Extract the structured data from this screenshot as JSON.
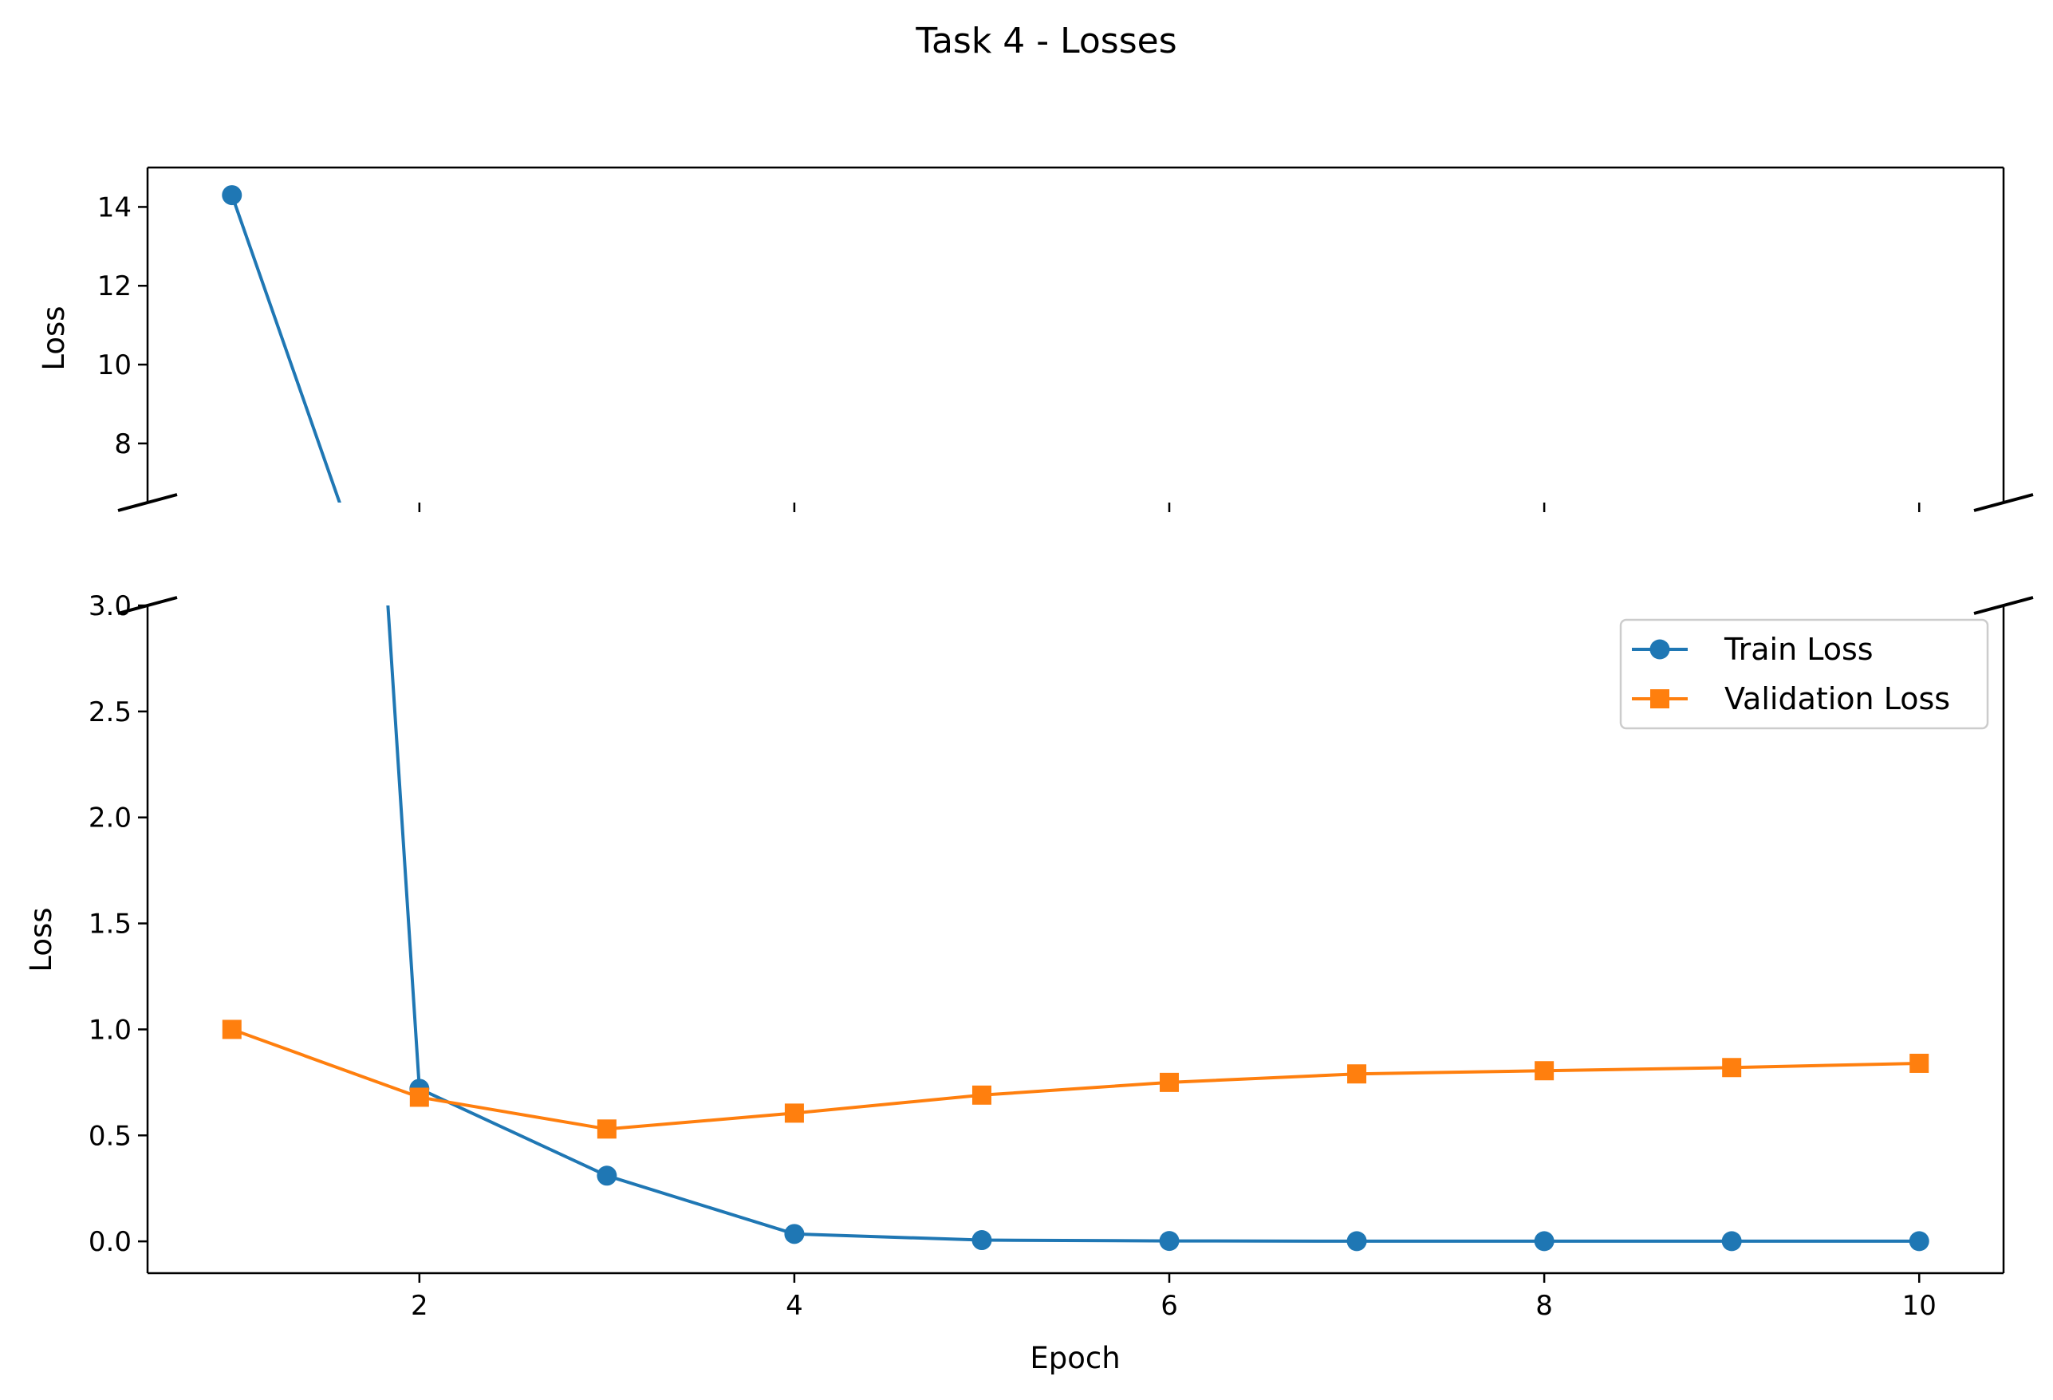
{
  "chart_data": {
    "type": "line",
    "title": "Task 4 - Losses",
    "xlabel": "Epoch",
    "ylabel": "Loss",
    "x": [
      1,
      2,
      3,
      4,
      5,
      6,
      7,
      8,
      9,
      10
    ],
    "xlim": [
      0.55,
      10.45
    ],
    "xticks": [
      2,
      4,
      6,
      8,
      10
    ],
    "broken_y_axis": true,
    "upper_panel": {
      "ylim": [
        6.5,
        15.0
      ],
      "yticks": [
        8,
        10,
        12,
        14
      ]
    },
    "lower_panel": {
      "ylim": [
        -0.15,
        3.0
      ],
      "yticks": [
        0.0,
        0.5,
        1.0,
        1.5,
        2.0,
        2.5,
        3.0
      ]
    },
    "legend_position": "upper-right",
    "grid": false,
    "series": [
      {
        "name": "Train Loss",
        "color": "#1f77b4",
        "marker": "circle",
        "values": [
          14.3,
          0.72,
          0.31,
          0.035,
          0.006,
          0.002,
          0.001,
          0.001,
          0.001,
          0.001
        ]
      },
      {
        "name": "Validation Loss",
        "color": "#ff7f0e",
        "marker": "square",
        "values": [
          1.0,
          0.68,
          0.53,
          0.605,
          0.69,
          0.75,
          0.79,
          0.805,
          0.82,
          0.84
        ]
      }
    ]
  }
}
